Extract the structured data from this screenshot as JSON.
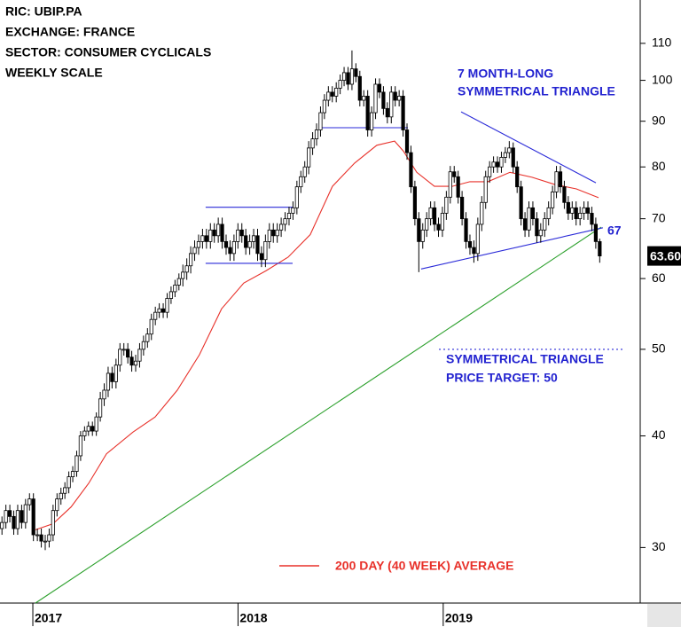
{
  "chart_data": {
    "type": "candlestick",
    "header": [
      "RIC: UBIP.PA",
      "EXCHANGE: FRANCE",
      "SECTOR: CONSUMER CYCLICALS",
      "WEEKLY SCALE"
    ],
    "log_scale": true,
    "xlim": [
      2016.84,
      2019.96
    ],
    "xticks": [
      2017,
      2018,
      2019
    ],
    "ylim": [
      26,
      123
    ],
    "yticks": [
      30,
      40,
      50,
      60,
      70,
      80,
      90,
      100,
      110
    ],
    "up_color": "#ffffff",
    "down_color": "#000000",
    "candles": [
      [
        31.5,
        32.5,
        31,
        32
      ],
      [
        32,
        33.5,
        31.5,
        33
      ],
      [
        33,
        33.5,
        32,
        32.5
      ],
      [
        32.5,
        33,
        31,
        31.5
      ],
      [
        31.5,
        33.5,
        31,
        33
      ],
      [
        33,
        33.5,
        31.5,
        32
      ],
      [
        32,
        34,
        31.5,
        33.5
      ],
      [
        33.5,
        34.5,
        33,
        34
      ],
      [
        34,
        34.5,
        30.5,
        31
      ],
      [
        31,
        31.5,
        30.5,
        31
      ],
      [
        31,
        31.5,
        30,
        30.5
      ],
      [
        30.5,
        31,
        29.8,
        30.5
      ],
      [
        30.5,
        31.5,
        30,
        31
      ],
      [
        31,
        33.5,
        30.5,
        33
      ],
      [
        33,
        34.5,
        32.5,
        34
      ],
      [
        34,
        35,
        33.5,
        34.5
      ],
      [
        34.5,
        35.5,
        34,
        35
      ],
      [
        35,
        36.5,
        34.5,
        36
      ],
      [
        36,
        37,
        35.5,
        36.5
      ],
      [
        36.5,
        38.5,
        36,
        38
      ],
      [
        38,
        40.5,
        37.5,
        40
      ],
      [
        40,
        41,
        39.5,
        40.5
      ],
      [
        40.5,
        41.5,
        40,
        41
      ],
      [
        41,
        41.5,
        40,
        40.5
      ],
      [
        40.5,
        42.5,
        40,
        42
      ],
      [
        42,
        44.8,
        41.5,
        44
      ],
      [
        44,
        45.8,
        43.2,
        45
      ],
      [
        45,
        47.8,
        44.2,
        47
      ],
      [
        47,
        47.8,
        45.2,
        46
      ],
      [
        46,
        48.8,
        45.2,
        48
      ],
      [
        48,
        50.8,
        47.2,
        50
      ],
      [
        50,
        50.8,
        49.2,
        50
      ],
      [
        50,
        50.8,
        48.2,
        49
      ],
      [
        49,
        49.8,
        47.2,
        48
      ],
      [
        48,
        49.3,
        47.2,
        48.5
      ],
      [
        48.5,
        50.8,
        47.7,
        50
      ],
      [
        50,
        51.8,
        49.2,
        51
      ],
      [
        51,
        52.8,
        50.2,
        52
      ],
      [
        52,
        54.8,
        51.2,
        54
      ],
      [
        54,
        55.8,
        53.2,
        55
      ],
      [
        55,
        56.3,
        54.2,
        55.5
      ],
      [
        55.5,
        56.3,
        54.2,
        55
      ],
      [
        55,
        57.8,
        54.2,
        57
      ],
      [
        57,
        58.8,
        56.2,
        58
      ],
      [
        58,
        59.8,
        57.2,
        59
      ],
      [
        59,
        60.8,
        58.2,
        60
      ],
      [
        60,
        62.2,
        58.8,
        61
      ],
      [
        61,
        63.2,
        59.8,
        62
      ],
      [
        62,
        65.2,
        60.8,
        64
      ],
      [
        64,
        66.2,
        62.8,
        65
      ],
      [
        65,
        67.2,
        63.8,
        66
      ],
      [
        66,
        68.2,
        64.8,
        67
      ],
      [
        67,
        68.2,
        64.8,
        66
      ],
      [
        66,
        69.2,
        64.8,
        68
      ],
      [
        68,
        69.2,
        65.8,
        67
      ],
      [
        67,
        70.2,
        65.8,
        69
      ],
      [
        69,
        70.2,
        64.8,
        66
      ],
      [
        66,
        67.2,
        63.8,
        65
      ],
      [
        65,
        66.2,
        62.8,
        64
      ],
      [
        64,
        67.2,
        62.8,
        66
      ],
      [
        66,
        69.2,
        64.8,
        68
      ],
      [
        68,
        69.2,
        65.8,
        67
      ],
      [
        67,
        68.2,
        63.8,
        65
      ],
      [
        65,
        67.2,
        63.8,
        66
      ],
      [
        66,
        68.2,
        64.8,
        67
      ],
      [
        67,
        68.2,
        62.8,
        64
      ],
      [
        64,
        65.2,
        61.8,
        63
      ],
      [
        63,
        67.2,
        61.8,
        66
      ],
      [
        66,
        69.2,
        64.8,
        68
      ],
      [
        68,
        69.2,
        65.8,
        67
      ],
      [
        67,
        69.2,
        65.8,
        68
      ],
      [
        68,
        70.2,
        66.8,
        69
      ],
      [
        69,
        71.2,
        67.8,
        70
      ],
      [
        70,
        72.2,
        68.8,
        71
      ],
      [
        71,
        73.2,
        69.8,
        72
      ],
      [
        72,
        77.2,
        70.8,
        76
      ],
      [
        76,
        79.2,
        74.8,
        78
      ],
      [
        78,
        81.2,
        76.8,
        80
      ],
      [
        80,
        85.5,
        78.5,
        84
      ],
      [
        84,
        87.5,
        82.5,
        86
      ],
      [
        86,
        89.5,
        84.5,
        88
      ],
      [
        88,
        93.5,
        86.5,
        92
      ],
      [
        92,
        96.5,
        90.5,
        95
      ],
      [
        95,
        98.5,
        93.5,
        97
      ],
      [
        97,
        98.5,
        94.5,
        96
      ],
      [
        96,
        99.5,
        94.5,
        98
      ],
      [
        98,
        101.5,
        96.5,
        100
      ],
      [
        100,
        103.5,
        98.5,
        102
      ],
      [
        102,
        103.5,
        97.5,
        99
      ],
      [
        99,
        108,
        97.5,
        103
      ],
      [
        103,
        104.5,
        99.5,
        101
      ],
      [
        101,
        102.5,
        93.5,
        95
      ],
      [
        95,
        97.5,
        93.5,
        96
      ],
      [
        96,
        97.5,
        86.5,
        88
      ],
      [
        88,
        93.5,
        86.5,
        92
      ],
      [
        92,
        100.5,
        90.5,
        99
      ],
      [
        99,
        100.5,
        95.5,
        97
      ],
      [
        97,
        98.5,
        91.5,
        93
      ],
      [
        93,
        94.5,
        89.5,
        91
      ],
      [
        91,
        98.5,
        89.5,
        97
      ],
      [
        97,
        98.5,
        93.5,
        95
      ],
      [
        95,
        97.5,
        93.5,
        96
      ],
      [
        96,
        97.5,
        86.5,
        88
      ],
      [
        88,
        89.5,
        81.5,
        83
      ],
      [
        83,
        84.5,
        74.8,
        76
      ],
      [
        76,
        77.2,
        68.8,
        70
      ],
      [
        70,
        71.2,
        61,
        66
      ],
      [
        66,
        69.2,
        64.8,
        68
      ],
      [
        68,
        71.2,
        66.8,
        70
      ],
      [
        70,
        73.2,
        68.8,
        72
      ],
      [
        72,
        73.2,
        67.8,
        69
      ],
      [
        69,
        70.2,
        66.8,
        68
      ],
      [
        68,
        72.2,
        66.8,
        71
      ],
      [
        71,
        75.2,
        69.8,
        74
      ],
      [
        74,
        80.2,
        72.8,
        79
      ],
      [
        79,
        80.2,
        76.8,
        78
      ],
      [
        78,
        79.2,
        72.8,
        74
      ],
      [
        74,
        75.2,
        68.8,
        70
      ],
      [
        70,
        71.2,
        64.8,
        66
      ],
      [
        66,
        67.2,
        63.8,
        65
      ],
      [
        65,
        66.2,
        62.5,
        64
      ],
      [
        64,
        70.2,
        62.8,
        69
      ],
      [
        69,
        74.2,
        67.8,
        73
      ],
      [
        73,
        79.2,
        71.8,
        78
      ],
      [
        78,
        81.2,
        76.8,
        80
      ],
      [
        80,
        82.2,
        78.8,
        81
      ],
      [
        81,
        82.2,
        78.8,
        80
      ],
      [
        80,
        83.2,
        78.8,
        82
      ],
      [
        82,
        84.2,
        80.8,
        83
      ],
      [
        83,
        85.5,
        81.8,
        84
      ],
      [
        84,
        85.2,
        78.8,
        80
      ],
      [
        80,
        81.2,
        74.8,
        76
      ],
      [
        76,
        77.2,
        68.8,
        70
      ],
      [
        70,
        71.2,
        66.8,
        68
      ],
      [
        68,
        73.2,
        66.8,
        72
      ],
      [
        72,
        73.2,
        68.8,
        70
      ],
      [
        70,
        71.2,
        65.8,
        67
      ],
      [
        67,
        69.2,
        65.8,
        68
      ],
      [
        68,
        71.2,
        66.8,
        70
      ],
      [
        70,
        73.2,
        68.8,
        72
      ],
      [
        72,
        76.2,
        70.8,
        75
      ],
      [
        75,
        80.2,
        73.8,
        79
      ],
      [
        79,
        80.2,
        74.8,
        76
      ],
      [
        76,
        77.2,
        71.8,
        73
      ],
      [
        73,
        74.2,
        69.8,
        71
      ],
      [
        71,
        73.2,
        69.8,
        72
      ],
      [
        72,
        73.2,
        68.8,
        70
      ],
      [
        70,
        72.2,
        68.8,
        71
      ],
      [
        71,
        73.2,
        69.8,
        72
      ],
      [
        72,
        73.2,
        69.8,
        71
      ],
      [
        71,
        72.2,
        67.8,
        69
      ],
      [
        69,
        70.2,
        64.8,
        66
      ],
      [
        66,
        66.5,
        62.5,
        63.6
      ]
    ],
    "ma": {
      "name": "200 DAY (40 WEEK) AVERAGE",
      "color": "#e8312a",
      "x": [
        2017.013,
        2017.099,
        2017.186,
        2017.272,
        2017.359,
        2017.488,
        2017.596,
        2017.704,
        2017.812,
        2017.92,
        2018.028,
        2018.136,
        2018.244,
        2018.352,
        2018.46,
        2018.568,
        2018.676,
        2018.763,
        2018.806,
        2018.871,
        2018.957,
        2019.044,
        2019.13,
        2019.217,
        2019.325,
        2019.433,
        2019.541,
        2019.649,
        2019.757
      ],
      "values": [
        31.4,
        31.9,
        33.3,
        35.4,
        38.2,
        40.4,
        42,
        45,
        49.3,
        55.5,
        59.3,
        61.2,
        63.4,
        67.2,
        76.1,
        80.8,
        84.6,
        85.5,
        83.3,
        78.9,
        76.1,
        76.1,
        77,
        77,
        78.9,
        77.9,
        76.5,
        75.6,
        73.9
      ]
    },
    "trendlines": [
      {
        "color": "#2ca02c",
        "x": [
          2017.013,
          2019.77
        ],
        "values": [
          26,
          68.5
        ]
      },
      {
        "color": "#2a2ad8",
        "x": [
          2019.087,
          2019.744
        ],
        "values": [
          92.2,
          76.8
        ]
      },
      {
        "color": "#2a2ad8",
        "x": [
          2018.892,
          2019.778
        ],
        "values": [
          61.5,
          68.4
        ]
      },
      {
        "color": "#2a2ad8",
        "x": [
          2017.842,
          2018.266
        ],
        "values": [
          72.1,
          72.1
        ]
      },
      {
        "color": "#2a2ad8",
        "x": [
          2017.842,
          2018.266
        ],
        "values": [
          62.4,
          62.4
        ]
      },
      {
        "color": "#2a2ad8",
        "x": [
          2018.404,
          2018.828
        ],
        "values": [
          88.5,
          88.5
        ]
      },
      {
        "color": "#2a2ad8",
        "x": [
          2018.979,
          2019.878
        ],
        "values": [
          50,
          50
        ],
        "dashed": true
      }
    ],
    "annotations": [
      "7 MONTH-LONG",
      "SYMMETRICAL TRIANGLE",
      "67",
      "SYMMETRICAL TRIANGLE",
      "PRICE TARGET: 50"
    ],
    "last": {
      "value": 63.6,
      "label": "63.60"
    }
  }
}
